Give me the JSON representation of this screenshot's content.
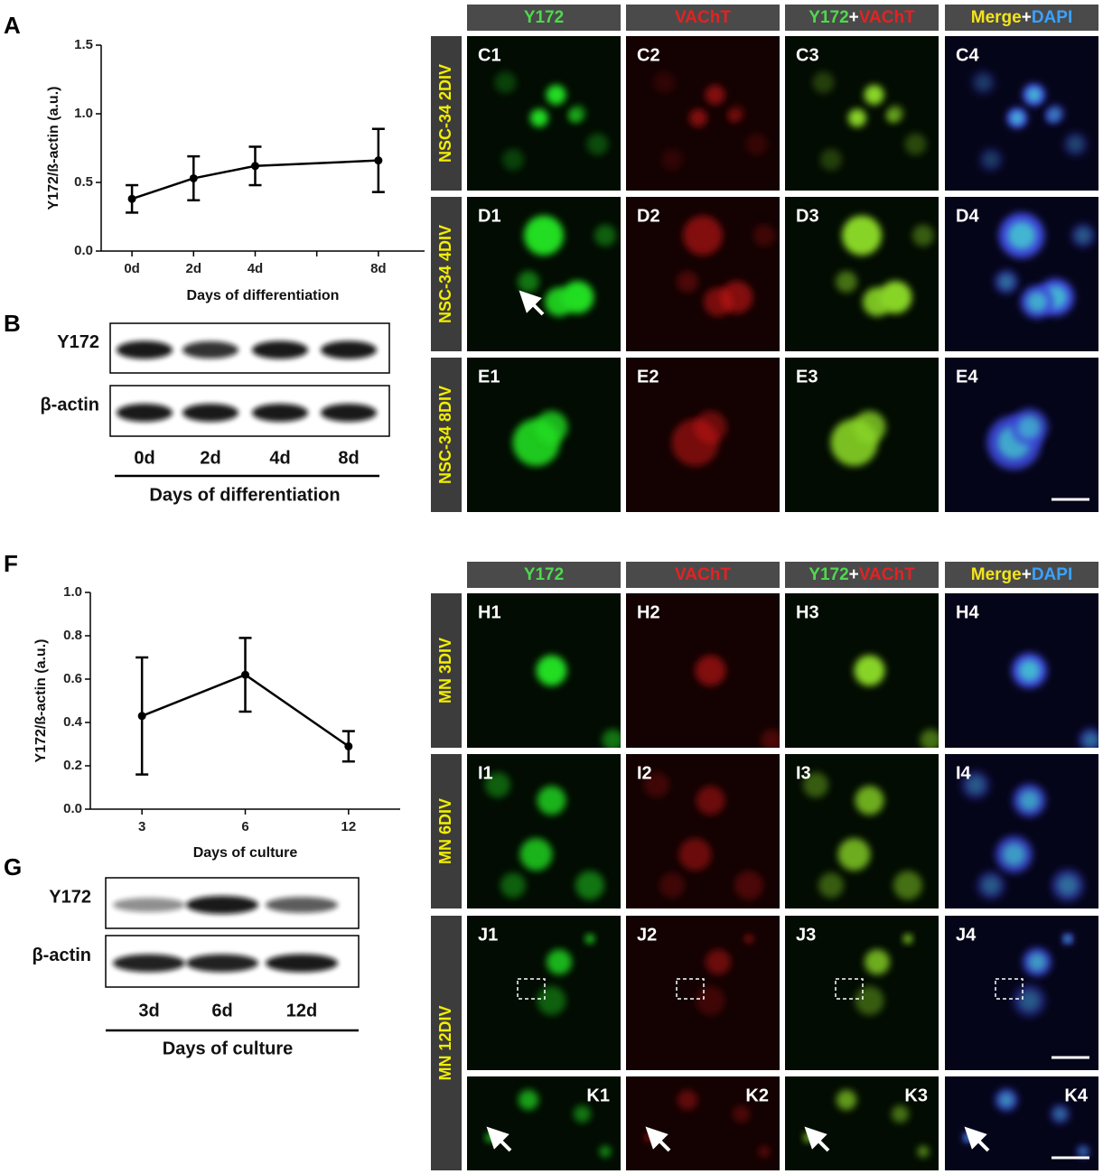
{
  "figure": {
    "panel_letters": [
      "A",
      "B",
      "F",
      "G"
    ],
    "blots": [
      {
        "rows": [
          "Y172",
          "β-actin"
        ],
        "lanes": [
          "0d",
          "2d",
          "4d",
          "8d"
        ],
        "xlabel": "Days of differentiation"
      },
      {
        "rows": [
          "Y172",
          "β-actin"
        ],
        "lanes": [
          "3d",
          "6d",
          "12d"
        ],
        "xlabel": "Days of culture"
      }
    ],
    "microscopy": [
      {
        "headers": [
          [
            {
              "text": "Y172",
              "color": "#4fd94f"
            }
          ],
          [
            {
              "text": "VAChT",
              "color": "#e42222"
            }
          ],
          [
            {
              "text": "Y172",
              "color": "#4fd94f"
            },
            {
              "text": "+",
              "color": "#ffffff"
            },
            {
              "text": "VAChT",
              "color": "#e42222"
            }
          ],
          [
            {
              "text": "Merge",
              "color": "#f2e41c"
            },
            {
              "text": "+",
              "color": "#ffffff"
            },
            {
              "text": "DAPI",
              "color": "#3aa2ff"
            }
          ]
        ],
        "rows": [
          {
            "label": "NSC-34 2DIV",
            "panels": [
              "C1",
              "C2",
              "C3",
              "C4"
            ]
          },
          {
            "label": "NSC-34 4DIV",
            "panels": [
              "D1",
              "D2",
              "D3",
              "D4"
            ]
          },
          {
            "label": "NSC-34 8DIV",
            "panels": [
              "E1",
              "E2",
              "E3",
              "E4"
            ]
          }
        ]
      },
      {
        "headers": [
          [
            {
              "text": "Y172",
              "color": "#4fd94f"
            }
          ],
          [
            {
              "text": "VAChT",
              "color": "#e42222"
            }
          ],
          [
            {
              "text": "Y172",
              "color": "#4fd94f"
            },
            {
              "text": "+",
              "color": "#ffffff"
            },
            {
              "text": "VAChT",
              "color": "#e42222"
            }
          ],
          [
            {
              "text": "Merge",
              "color": "#f2e41c"
            },
            {
              "text": "+",
              "color": "#ffffff"
            },
            {
              "text": "DAPI",
              "color": "#3aa2ff"
            }
          ]
        ],
        "rows": [
          {
            "label": "MN 3DIV",
            "panels": [
              "H1",
              "H2",
              "H3",
              "H4"
            ]
          },
          {
            "label": "MN 6DIV",
            "panels": [
              "I1",
              "I2",
              "I3",
              "I4"
            ]
          },
          {
            "label": "MN 12DIV",
            "panels": [
              "J1",
              "J2",
              "J3",
              "J4"
            ]
          },
          {
            "label": null,
            "panels": [
              "K1",
              "K2",
              "K3",
              "K4"
            ]
          }
        ]
      }
    ]
  },
  "chart_data": [
    {
      "type": "line",
      "x": [
        0,
        2,
        4,
        8
      ],
      "values": [
        0.38,
        0.53,
        0.62,
        0.66
      ],
      "errors": [
        0.1,
        0.16,
        0.14,
        0.23
      ],
      "color": "#000000",
      "xlabel": "Days of differentiation",
      "ylabel": "Y172/ß-actin (a.u.)",
      "xlim": [
        -1,
        9.5
      ],
      "ylim": [
        0,
        1.5
      ],
      "xticks": [
        {
          "value": 0,
          "label": "0d"
        },
        {
          "value": 2,
          "label": "2d"
        },
        {
          "value": 4,
          "label": "4d"
        },
        {
          "value": 6,
          "label": null
        },
        {
          "value": 8,
          "label": "8d"
        }
      ],
      "yticks": [
        {
          "value": 0,
          "label": "0.0"
        },
        {
          "value": 0.5,
          "label": "0.5"
        },
        {
          "value": 1,
          "label": "1.0"
        },
        {
          "value": 1.5,
          "label": "1.5"
        }
      ]
    },
    {
      "type": "line",
      "categories": [
        "3",
        "6",
        "12"
      ],
      "values": [
        0.43,
        0.62,
        0.29
      ],
      "errors": [
        0.27,
        0.17,
        0.07
      ],
      "color": "#000000",
      "xlabel": "Days of culture",
      "ylabel": "Y172/ß-actin (a.u.)",
      "ylim": [
        0,
        1
      ],
      "yticks": [
        {
          "value": 0,
          "label": "0.0"
        },
        {
          "value": 0.2,
          "label": "0.2"
        },
        {
          "value": 0.4,
          "label": "0.4"
        },
        {
          "value": 0.6,
          "label": "0.6"
        },
        {
          "value": 0.8,
          "label": "0.8"
        },
        {
          "value": 1,
          "label": "1.0"
        }
      ]
    }
  ]
}
